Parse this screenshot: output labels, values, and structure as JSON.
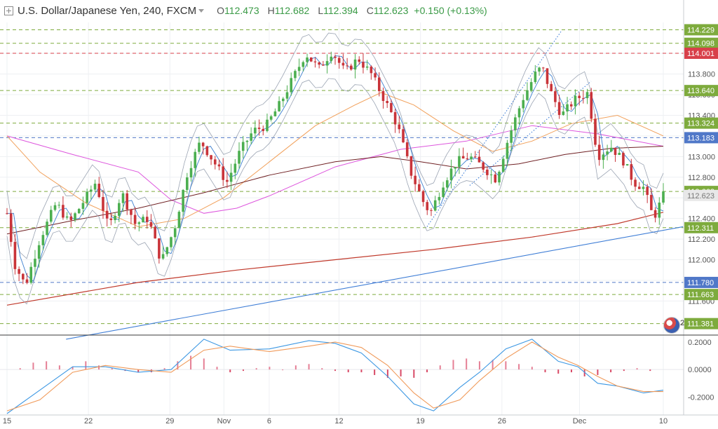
{
  "header": {
    "title": "U.S. Dollar/Japanese Yen, 240, FXCM",
    "open_label": "O",
    "open": "112.473",
    "high_label": "H",
    "high": "112.682",
    "low_label": "L",
    "low": "112.394",
    "close_label": "C",
    "close": "112.623",
    "change": "+0.150 (+0.13%)"
  },
  "badge_count": "2",
  "colors": {
    "up": "#4caf50",
    "down": "#c9343a",
    "green_level": "#7eab3d",
    "red_level": "#d8404a",
    "blue_level": "#5078c8",
    "sma_magenta": "#dd55dd",
    "sma_orange": "#f1a05a",
    "sma_brown": "#6e1f22",
    "ema_red": "#c0392b",
    "trend_blue": "#3f7ed6",
    "macd_line": "#3d98e3",
    "signal_line": "#f09a5a",
    "hist_up": "#e57f95",
    "hist_down": "#d84a66"
  },
  "chart_data": [
    {
      "type": "candlestick",
      "title": "U.S. Dollar/Japanese Yen, 240, FXCM",
      "ylim": [
        111.27,
        114.3
      ],
      "y_ticks": [
        111.6,
        111.8,
        112.0,
        112.2,
        112.4,
        112.6,
        112.8,
        113.0,
        113.2,
        113.4,
        113.6,
        113.8,
        114.0
      ],
      "y_tick_labels": [
        "111.600",
        "111.800",
        "112.000",
        "112.200",
        "112.400",
        "112.600",
        "112.800",
        "113.000",
        "113.200",
        "113.400",
        "113.600",
        "113.800",
        "114.000"
      ],
      "x_ticks": [
        {
          "label": "15",
          "pos": 0.0
        },
        {
          "label": "22",
          "pos": 0.1241
        },
        {
          "label": "29",
          "pos": 0.2482
        },
        {
          "label": "Nov",
          "pos": 0.3305
        },
        {
          "label": "6",
          "pos": 0.3995
        },
        {
          "label": "12",
          "pos": 0.5059
        },
        {
          "label": "19",
          "pos": 0.63
        },
        {
          "label": "26",
          "pos": 0.7541
        },
        {
          "label": "Dec",
          "pos": 0.8723
        },
        {
          "label": "10",
          "pos": 1.0
        }
      ],
      "price_levels": [
        {
          "value": 114.229,
          "label": "114.229",
          "kind": "green"
        },
        {
          "value": 114.098,
          "label": "114.098",
          "kind": "green"
        },
        {
          "value": 114.001,
          "label": "114.001",
          "kind": "red"
        },
        {
          "value": 113.64,
          "label": "113.640",
          "kind": "green"
        },
        {
          "value": 113.324,
          "label": "113.324",
          "kind": "green"
        },
        {
          "value": 113.183,
          "label": "113.183",
          "kind": "blue"
        },
        {
          "value": 112.662,
          "label": "112.662",
          "kind": "green"
        },
        {
          "value": 112.311,
          "label": "112.311",
          "kind": "green"
        },
        {
          "value": 111.78,
          "label": "111.780",
          "kind": "blue"
        },
        {
          "value": 111.663,
          "label": "111.663",
          "kind": "green"
        },
        {
          "value": 111.381,
          "label": "111.381",
          "kind": "green"
        }
      ],
      "last_price": {
        "value": 112.623,
        "label": "112.623"
      },
      "path_anchors": [
        [
          0.0,
          112.45
        ],
        [
          0.012,
          111.95
        ],
        [
          0.028,
          111.75
        ],
        [
          0.05,
          112.2
        ],
        [
          0.075,
          112.55
        ],
        [
          0.095,
          112.35
        ],
        [
          0.115,
          112.55
        ],
        [
          0.135,
          112.75
        ],
        [
          0.155,
          112.3
        ],
        [
          0.175,
          112.65
        ],
        [
          0.195,
          112.35
        ],
        [
          0.215,
          112.4
        ],
        [
          0.235,
          111.98
        ],
        [
          0.255,
          112.3
        ],
        [
          0.275,
          112.85
        ],
        [
          0.295,
          113.15
        ],
        [
          0.315,
          112.95
        ],
        [
          0.335,
          112.75
        ],
        [
          0.355,
          113.05
        ],
        [
          0.375,
          113.25
        ],
        [
          0.395,
          113.3
        ],
        [
          0.415,
          113.5
        ],
        [
          0.435,
          113.75
        ],
        [
          0.455,
          114.0
        ],
        [
          0.475,
          113.85
        ],
        [
          0.495,
          114.02
        ],
        [
          0.515,
          113.82
        ],
        [
          0.535,
          113.95
        ],
        [
          0.555,
          113.8
        ],
        [
          0.575,
          113.55
        ],
        [
          0.595,
          113.3
        ],
        [
          0.615,
          112.85
        ],
        [
          0.635,
          112.55
        ],
        [
          0.645,
          112.45
        ],
        [
          0.665,
          112.75
        ],
        [
          0.685,
          112.95
        ],
        [
          0.705,
          113.0
        ],
        [
          0.725,
          112.9
        ],
        [
          0.745,
          112.78
        ],
        [
          0.765,
          113.2
        ],
        [
          0.785,
          113.55
        ],
        [
          0.805,
          113.8
        ],
        [
          0.815,
          113.87
        ],
        [
          0.83,
          113.6
        ],
        [
          0.845,
          113.4
        ],
        [
          0.865,
          113.55
        ],
        [
          0.885,
          113.62
        ],
        [
          0.9,
          113.0
        ],
        [
          0.92,
          113.1
        ],
        [
          0.94,
          112.95
        ],
        [
          0.955,
          112.75
        ],
        [
          0.97,
          112.7
        ],
        [
          0.985,
          112.4
        ],
        [
          1.0,
          112.62
        ]
      ],
      "moving_averages": [
        {
          "name": "SMA magenta",
          "color": "#dd55dd",
          "points": [
            [
              0.0,
              113.2
            ],
            [
              0.1,
              113.02
            ],
            [
              0.2,
              112.85
            ],
            [
              0.25,
              112.58
            ],
            [
              0.3,
              112.45
            ],
            [
              0.35,
              112.5
            ],
            [
              0.4,
              112.62
            ],
            [
              0.5,
              112.9
            ],
            [
              0.6,
              113.07
            ],
            [
              0.7,
              113.15
            ],
            [
              0.8,
              113.3
            ],
            [
              0.9,
              113.22
            ],
            [
              1.0,
              113.1
            ]
          ]
        },
        {
          "name": "SMA orange",
          "color": "#f1a05a",
          "points": [
            [
              0.0,
              113.2
            ],
            [
              0.05,
              112.85
            ],
            [
              0.12,
              112.55
            ],
            [
              0.2,
              112.32
            ],
            [
              0.27,
              112.4
            ],
            [
              0.33,
              112.6
            ],
            [
              0.4,
              112.95
            ],
            [
              0.47,
              113.3
            ],
            [
              0.53,
              113.5
            ],
            [
              0.57,
              113.62
            ],
            [
              0.62,
              113.5
            ],
            [
              0.68,
              113.25
            ],
            [
              0.74,
              113.05
            ],
            [
              0.8,
              113.15
            ],
            [
              0.86,
              113.32
            ],
            [
              0.93,
              113.4
            ],
            [
              1.0,
              113.2
            ]
          ]
        },
        {
          "name": "SMA brown",
          "color": "#6e1f22",
          "points": [
            [
              0.0,
              112.25
            ],
            [
              0.1,
              112.38
            ],
            [
              0.2,
              112.5
            ],
            [
              0.3,
              112.65
            ],
            [
              0.4,
              112.82
            ],
            [
              0.5,
              112.95
            ],
            [
              0.57,
              113.0
            ],
            [
              0.63,
              112.95
            ],
            [
              0.7,
              112.88
            ],
            [
              0.78,
              112.93
            ],
            [
              0.85,
              113.02
            ],
            [
              0.92,
              113.08
            ],
            [
              1.0,
              113.1
            ]
          ]
        },
        {
          "name": "EMA red",
          "color": "#c0392b",
          "points": [
            [
              0.0,
              111.56
            ],
            [
              0.2,
              111.78
            ],
            [
              0.35,
              111.9
            ],
            [
              0.5,
              112.0
            ],
            [
              0.65,
              112.1
            ],
            [
              0.8,
              112.22
            ],
            [
              0.93,
              112.35
            ],
            [
              1.0,
              112.46
            ]
          ]
        }
      ],
      "trend_lines": [
        {
          "name": "ascending support",
          "color": "#3f7ed6",
          "points": [
            [
              0.09,
              111.23
            ],
            [
              1.03,
              112.32
            ]
          ],
          "style": "solid"
        },
        {
          "name": "channel upper",
          "color": "#3f7ed6",
          "points": [
            [
              0.64,
              112.32
            ],
            [
              0.845,
              114.22
            ]
          ],
          "style": "dotted"
        },
        {
          "name": "channel lower",
          "color": "#3f7ed6",
          "points": [
            [
              0.705,
              112.72
            ],
            [
              0.89,
              113.73
            ]
          ],
          "style": "dotted"
        }
      ]
    },
    {
      "type": "line",
      "title": "MACD",
      "ylim": [
        -0.33,
        0.24
      ],
      "y_ticks": [
        0.2,
        0.0,
        -0.2
      ],
      "y_tick_labels": [
        "0.2000",
        "0.0000",
        "-0.2000"
      ],
      "series": [
        {
          "role": "macd",
          "points": [
            [
              0.0,
              -0.32
            ],
            [
              0.05,
              -0.15
            ],
            [
              0.1,
              0.02
            ],
            [
              0.15,
              0.02
            ],
            [
              0.2,
              -0.02
            ],
            [
              0.25,
              0.0
            ],
            [
              0.3,
              0.22
            ],
            [
              0.34,
              0.14
            ],
            [
              0.4,
              0.15
            ],
            [
              0.46,
              0.21
            ],
            [
              0.5,
              0.19
            ],
            [
              0.54,
              0.12
            ],
            [
              0.58,
              -0.05
            ],
            [
              0.62,
              -0.25
            ],
            [
              0.65,
              -0.3
            ],
            [
              0.69,
              -0.13
            ],
            [
              0.72,
              -0.02
            ],
            [
              0.76,
              0.15
            ],
            [
              0.8,
              0.22
            ],
            [
              0.84,
              0.06
            ],
            [
              0.87,
              0.02
            ],
            [
              0.9,
              -0.1
            ],
            [
              0.93,
              -0.12
            ],
            [
              0.97,
              -0.17
            ],
            [
              1.0,
              -0.15
            ]
          ]
        },
        {
          "role": "signal",
          "points": [
            [
              0.0,
              -0.3
            ],
            [
              0.05,
              -0.22
            ],
            [
              0.1,
              -0.02
            ],
            [
              0.15,
              0.03
            ],
            [
              0.2,
              0.0
            ],
            [
              0.25,
              -0.02
            ],
            [
              0.3,
              0.14
            ],
            [
              0.34,
              0.17
            ],
            [
              0.4,
              0.13
            ],
            [
              0.46,
              0.17
            ],
            [
              0.5,
              0.2
            ],
            [
              0.54,
              0.16
            ],
            [
              0.58,
              0.03
            ],
            [
              0.62,
              -0.17
            ],
            [
              0.65,
              -0.28
            ],
            [
              0.69,
              -0.22
            ],
            [
              0.72,
              -0.08
            ],
            [
              0.76,
              0.08
            ],
            [
              0.8,
              0.2
            ],
            [
              0.84,
              0.09
            ],
            [
              0.87,
              0.03
            ],
            [
              0.9,
              -0.05
            ],
            [
              0.93,
              -0.12
            ],
            [
              0.97,
              -0.16
            ],
            [
              1.0,
              -0.16
            ]
          ]
        }
      ],
      "histogram": [
        [
          0.02,
          0.01
        ],
        [
          0.04,
          0.05
        ],
        [
          0.06,
          0.06
        ],
        [
          0.08,
          0.03
        ],
        [
          0.1,
          0.02
        ],
        [
          0.12,
          0.06
        ],
        [
          0.14,
          0.03
        ],
        [
          0.16,
          0.01
        ],
        [
          0.18,
          -0.01
        ],
        [
          0.2,
          -0.02
        ],
        [
          0.22,
          -0.02
        ],
        [
          0.24,
          0.01
        ],
        [
          0.26,
          0.06
        ],
        [
          0.28,
          0.1
        ],
        [
          0.3,
          0.08
        ],
        [
          0.32,
          0.02
        ],
        [
          0.34,
          -0.02
        ],
        [
          0.36,
          -0.01
        ],
        [
          0.38,
          0.01
        ],
        [
          0.4,
          0.02
        ],
        [
          0.42,
          0.0
        ],
        [
          0.44,
          0.03
        ],
        [
          0.46,
          0.04
        ],
        [
          0.48,
          0.01
        ],
        [
          0.5,
          -0.01
        ],
        [
          0.52,
          -0.02
        ],
        [
          0.54,
          -0.02
        ],
        [
          0.56,
          -0.04
        ],
        [
          0.58,
          -0.06
        ],
        [
          0.6,
          -0.05
        ],
        [
          0.62,
          -0.06
        ],
        [
          0.64,
          -0.02
        ],
        [
          0.66,
          0.03
        ],
        [
          0.68,
          0.07
        ],
        [
          0.7,
          0.08
        ],
        [
          0.72,
          0.06
        ],
        [
          0.74,
          0.07
        ],
        [
          0.76,
          0.06
        ],
        [
          0.78,
          0.04
        ],
        [
          0.8,
          0.02
        ],
        [
          0.82,
          -0.02
        ],
        [
          0.84,
          -0.03
        ],
        [
          0.86,
          -0.02
        ],
        [
          0.88,
          -0.05
        ],
        [
          0.9,
          -0.04
        ],
        [
          0.92,
          -0.02
        ],
        [
          0.94,
          -0.01
        ],
        [
          0.96,
          0.01
        ],
        [
          0.98,
          -0.01
        ]
      ]
    }
  ]
}
